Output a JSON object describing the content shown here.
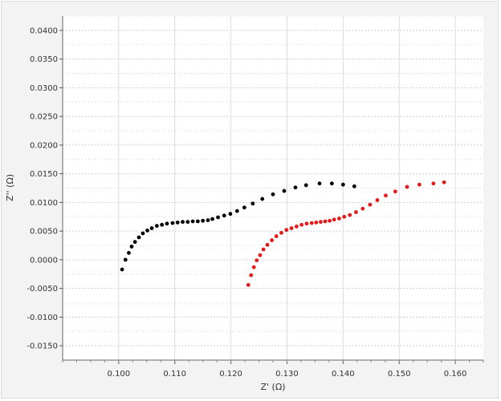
{
  "chart_data": {
    "type": "scatter",
    "title": "",
    "xlabel": "Z' (Ω)",
    "ylabel": "Z'' (Ω)",
    "xlim": [
      0.09,
      0.165
    ],
    "ylim": [
      -0.0175,
      0.0425
    ],
    "x_ticks": [
      "0.100",
      "0.110",
      "0.120",
      "0.130",
      "0.140",
      "0.150",
      "0.160"
    ],
    "x_tick_values": [
      0.1,
      0.11,
      0.12,
      0.13,
      0.14,
      0.15,
      0.16
    ],
    "y_ticks": [
      "0.0400",
      "0.0350",
      "0.0300",
      "0.0250",
      "0.0200",
      "0.0150",
      "0.0100",
      "0.0050",
      "0.0000",
      "-0.0050",
      "-0.0100",
      "-0.0150"
    ],
    "y_tick_values": [
      0.04,
      0.035,
      0.03,
      0.025,
      0.02,
      0.015,
      0.01,
      0.005,
      0.0,
      -0.005,
      -0.01,
      -0.015
    ],
    "grid": true,
    "series": [
      {
        "color": "#000000",
        "x": [
          0.1006,
          0.1012,
          0.1018,
          0.1023,
          0.1029,
          0.1036,
          0.1043,
          0.1051,
          0.1059,
          0.1068,
          0.1077,
          0.1086,
          0.1096,
          0.1105,
          0.1114,
          0.1123,
          0.1132,
          0.1141,
          0.115,
          0.1159,
          0.1167,
          0.1177,
          0.1188,
          0.1199,
          0.1211,
          0.1224,
          0.1239,
          0.1256,
          0.1275,
          0.1295,
          0.1315,
          0.1334,
          0.1358,
          0.138,
          0.14,
          0.142
        ],
        "y": [
          -0.0017,
          0.0,
          0.0012,
          0.0023,
          0.0031,
          0.0039,
          0.0046,
          0.0051,
          0.0055,
          0.0059,
          0.0061,
          0.0063,
          0.0064,
          0.0065,
          0.0066,
          0.0066,
          0.0067,
          0.0067,
          0.0068,
          0.0069,
          0.0071,
          0.0074,
          0.0077,
          0.008,
          0.0085,
          0.0091,
          0.0098,
          0.0106,
          0.0114,
          0.012,
          0.0126,
          0.013,
          0.0133,
          0.0133,
          0.0131,
          0.0128
        ]
      },
      {
        "color": "#e31a1a",
        "x": [
          0.1231,
          0.1236,
          0.1241,
          0.1246,
          0.1252,
          0.1258,
          0.1265,
          0.1273,
          0.1281,
          0.129,
          0.1299,
          0.1308,
          0.1317,
          0.1326,
          0.1335,
          0.1344,
          0.1352,
          0.136,
          0.1368,
          0.1376,
          0.1384,
          0.1393,
          0.1402,
          0.1412,
          0.1423,
          0.1435,
          0.1448,
          0.1461,
          0.1476,
          0.1493,
          0.1514,
          0.1536,
          0.1561,
          0.158
        ],
        "y": [
          -0.0044,
          -0.0027,
          -0.0013,
          -0.0001,
          0.0008,
          0.0018,
          0.0026,
          0.0034,
          0.0041,
          0.0047,
          0.0052,
          0.0055,
          0.0058,
          0.0061,
          0.0063,
          0.0064,
          0.0065,
          0.0066,
          0.0067,
          0.0068,
          0.007,
          0.0072,
          0.0075,
          0.0078,
          0.0083,
          0.0089,
          0.0096,
          0.0104,
          0.0112,
          0.0119,
          0.0127,
          0.0131,
          0.0133,
          0.0135
        ]
      }
    ]
  }
}
